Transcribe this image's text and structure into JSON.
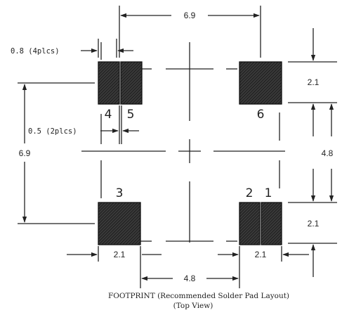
{
  "dimensions": {
    "top_width": "6.9",
    "pad_width_note": "0.8 (4plcs)",
    "gap_note": "0.5 (2plcs)",
    "left_height": "6.9",
    "right_pad_height_top": "2.1",
    "right_center_spacing": "4.8",
    "right_pad_height_bottom": "2.1",
    "bottom_left_pad_width": "2.1",
    "bottom_right_pad_width": "2.1",
    "bottom_center_spacing": "4.8"
  },
  "pads": [
    {
      "id": "4"
    },
    {
      "id": "5"
    },
    {
      "id": "6"
    },
    {
      "id": "3"
    },
    {
      "id": "2"
    },
    {
      "id": "1"
    }
  ],
  "caption": {
    "line1": "FOOTPRINT (Recommended Solder Pad Layout)",
    "line2": "(Top View)"
  },
  "colors": {
    "ink": "#222222",
    "pad_fill": "#3a3a3a"
  }
}
